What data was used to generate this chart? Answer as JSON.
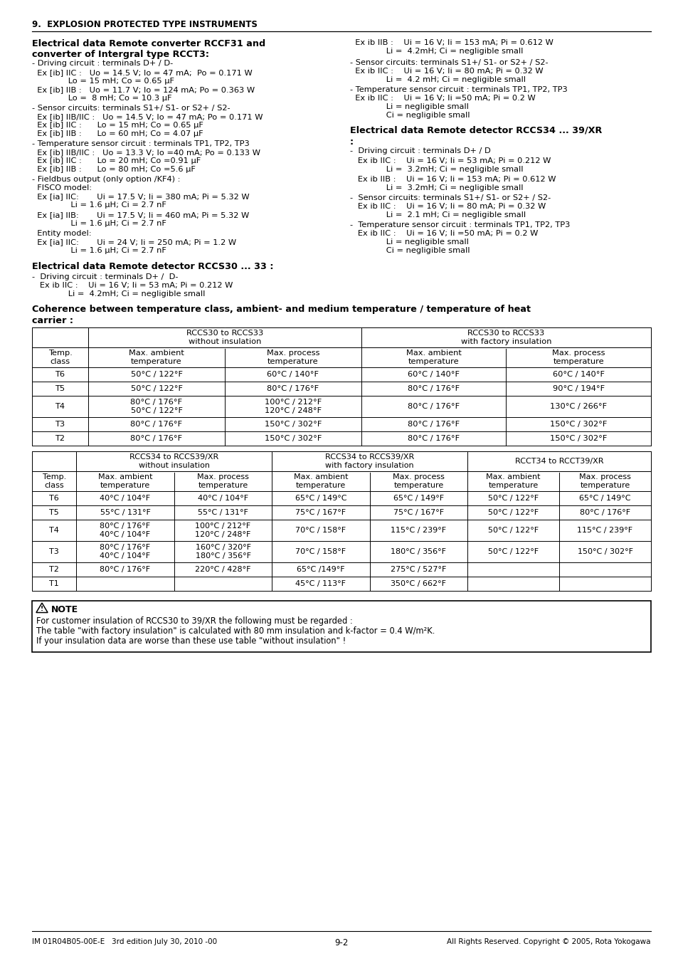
{
  "page_bg": "#ffffff",
  "section_header": "9.  EXPLOSION PROTECTED TYPE INSTRUMENTS",
  "footer_left": "IM 01R04B05-00E-E   3rd edition July 30, 2010 -00",
  "footer_center": "9-2",
  "footer_right": "All Rights Reserved. Copyright © 2005, Rota Yokogawa",
  "note_text_lines": [
    "For customer insulation of RCCS30 to 39/XR the following must be regarded :",
    "The table \"with factory insulation\" is calculated with 80 mm insulation and k-factor = 0.4 W/m²K.",
    "If your insulation data are worse than these use table \"without insulation\" !"
  ]
}
